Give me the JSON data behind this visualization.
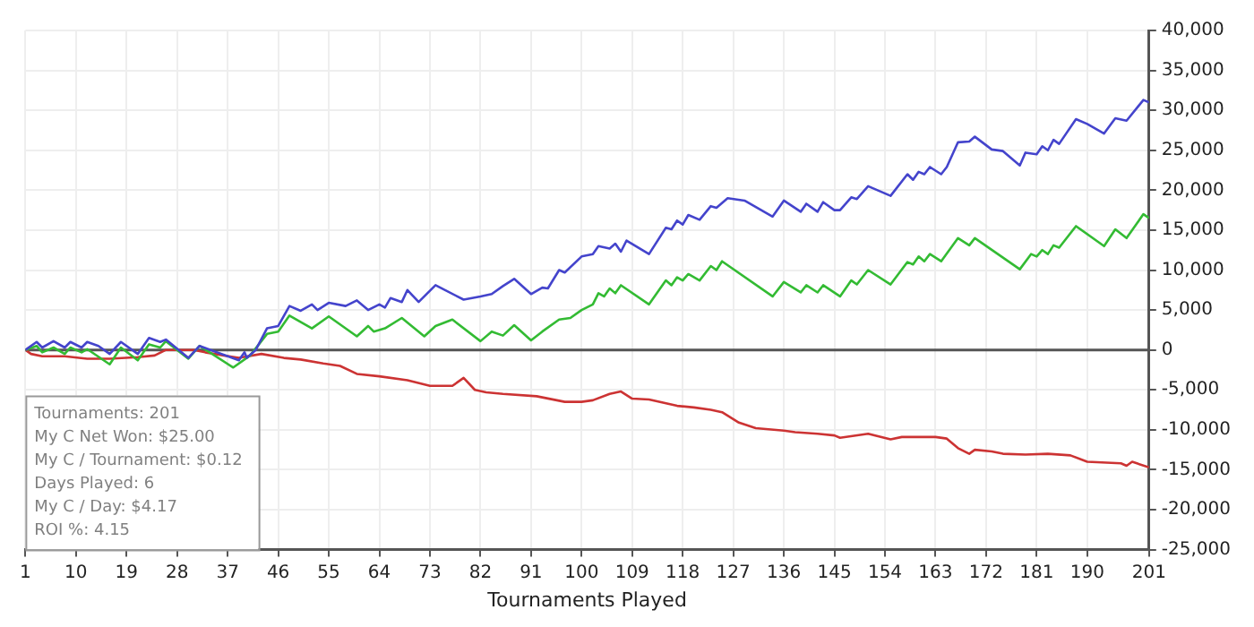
{
  "chart_data": {
    "type": "line",
    "xlabel": "Tournaments Played",
    "xlim": [
      1,
      201
    ],
    "xticks": [
      1,
      10,
      19,
      28,
      37,
      46,
      55,
      64,
      73,
      82,
      91,
      100,
      109,
      118,
      127,
      136,
      145,
      154,
      163,
      172,
      181,
      190,
      201
    ],
    "ylim": [
      -25000,
      40000
    ],
    "yticks": [
      {
        "value": -25000,
        "label": "-25,000"
      },
      {
        "value": -20000,
        "label": "-20,000"
      },
      {
        "value": -15000,
        "label": "-15,000"
      },
      {
        "value": -10000,
        "label": "-10,000"
      },
      {
        "value": -5000,
        "label": "-5,000"
      },
      0,
      {
        "value": 5000,
        "label": "5,000"
      },
      {
        "value": 10000,
        "label": "10,000"
      },
      {
        "value": 15000,
        "label": "15,000"
      },
      {
        "value": 20000,
        "label": "20,000"
      },
      {
        "value": 25000,
        "label": "25,000"
      },
      {
        "value": 30000,
        "label": "30,000"
      },
      {
        "value": 35000,
        "label": "35,000"
      },
      {
        "value": 40000,
        "label": "40,000"
      }
    ],
    "grid": true,
    "legend": false,
    "marker": "none",
    "line_style": "solid",
    "ref_lines": [
      {
        "axis": "y",
        "value": 0,
        "color": "#555555"
      }
    ],
    "annotations": [
      "Tournaments: 201",
      "My C Net Won: $25.00",
      "My C / Tournament: $0.12",
      "Days Played: 6",
      "My C / Day: $4.17",
      "ROI %: 4.15"
    ],
    "series": [
      {
        "color": "#4444cc",
        "x": [
          1,
          3,
          4,
          6,
          8,
          9,
          11,
          12,
          14,
          16,
          18,
          21,
          23,
          25,
          26,
          30,
          32,
          39,
          40,
          40.4,
          42,
          44,
          46,
          48,
          50,
          52,
          53,
          55,
          58,
          60,
          62,
          64,
          65,
          66,
          68,
          69,
          71,
          74,
          79,
          82,
          84,
          86,
          88,
          91,
          93,
          94,
          96,
          97,
          100,
          102,
          103,
          105,
          106,
          107,
          108,
          112,
          115,
          116,
          117,
          118,
          119,
          121,
          123,
          124,
          126,
          129,
          134,
          136,
          139,
          140,
          142,
          143,
          145,
          146,
          148,
          149,
          151,
          155,
          158,
          159,
          160,
          161,
          162,
          164,
          165,
          167,
          169,
          170,
          173,
          175,
          178,
          179,
          181,
          182,
          183,
          184,
          185,
          188,
          190,
          193,
          195,
          197,
          200,
          201
        ],
        "values": [
          0,
          1000,
          300,
          1100,
          300,
          1000,
          300,
          1000,
          500,
          -500,
          1000,
          -500,
          1500,
          1000,
          1300,
          -1000,
          500,
          -1300,
          -300,
          -1000,
          0,
          2700,
          3000,
          5500,
          4900,
          5700,
          5000,
          5900,
          5500,
          6200,
          5000,
          5700,
          5300,
          6500,
          6000,
          7500,
          6000,
          8100,
          6300,
          6700,
          7000,
          8000,
          8900,
          7000,
          7800,
          7700,
          10000,
          9700,
          11700,
          12000,
          13000,
          12700,
          13300,
          12300,
          13700,
          12000,
          15300,
          15100,
          16200,
          15700,
          16900,
          16300,
          18000,
          17800,
          19000,
          18700,
          16700,
          18700,
          17300,
          18300,
          17300,
          18500,
          17500,
          17500,
          19100,
          18900,
          20500,
          19300,
          22000,
          21300,
          22300,
          22000,
          22900,
          22000,
          22900,
          26000,
          26100,
          26700,
          25100,
          24900,
          23100,
          24700,
          24500,
          25500,
          25000,
          26300,
          25800,
          28900,
          28300,
          27100,
          29000,
          28700,
          31300,
          31000
        ]
      },
      {
        "color": "#33bb33",
        "x": [
          1,
          3,
          4,
          6,
          8,
          9,
          11,
          12,
          16,
          18,
          21,
          23,
          25,
          26,
          30,
          32,
          38,
          41,
          44,
          46,
          48,
          52,
          55,
          60,
          62,
          63,
          65,
          68,
          72,
          74,
          77,
          82,
          84,
          86,
          88,
          91,
          93,
          96,
          98,
          100,
          102,
          103,
          104,
          105,
          106,
          107,
          112,
          115,
          116,
          117,
          118,
          119,
          121,
          123,
          124,
          125,
          134,
          136,
          139,
          140,
          142,
          143,
          146,
          148,
          149,
          151,
          155,
          158,
          159,
          160,
          161,
          162,
          164,
          167,
          169,
          170,
          178,
          180,
          181,
          182,
          183,
          184,
          185,
          188,
          193,
          195,
          197,
          200,
          201
        ],
        "values": [
          0,
          500,
          -300,
          300,
          -500,
          300,
          -300,
          100,
          -1800,
          300,
          -1300,
          700,
          300,
          1100,
          -1100,
          500,
          -2200,
          -700,
          2000,
          2300,
          4300,
          2700,
          4200,
          1700,
          3000,
          2300,
          2700,
          4000,
          1700,
          3000,
          3800,
          1100,
          2300,
          1800,
          3100,
          1200,
          2300,
          3800,
          4000,
          5000,
          5700,
          7100,
          6700,
          7700,
          7100,
          8100,
          5700,
          8700,
          8100,
          9100,
          8700,
          9500,
          8700,
          10500,
          10000,
          11100,
          6700,
          8500,
          7200,
          8100,
          7200,
          8100,
          6700,
          8700,
          8200,
          10000,
          8200,
          11000,
          10700,
          11700,
          11100,
          12000,
          11100,
          14000,
          13100,
          14000,
          10100,
          12000,
          11700,
          12500,
          12000,
          13100,
          12800,
          15500,
          13000,
          15100,
          14000,
          17000,
          16500
        ]
      },
      {
        "color": "#cc3333",
        "x": [
          1,
          2,
          4,
          8,
          12,
          16,
          21,
          24,
          26,
          31,
          33,
          39,
          43,
          47,
          50,
          54,
          57,
          60,
          64,
          69,
          73,
          77,
          79,
          81,
          83,
          86,
          92,
          97,
          100,
          102,
          105,
          107,
          109,
          112,
          117,
          120,
          123,
          125,
          128,
          131,
          136,
          138,
          142,
          145,
          146,
          151,
          155,
          157,
          163,
          165,
          167,
          169,
          170,
          173,
          175,
          179,
          183,
          187,
          190,
          196,
          197,
          198,
          201
        ],
        "values": [
          0,
          -500,
          -800,
          -800,
          -1100,
          -1100,
          -900,
          -700,
          0,
          0,
          -300,
          -1000,
          -500,
          -1000,
          -1200,
          -1700,
          -2000,
          -3000,
          -3300,
          -3800,
          -4500,
          -4500,
          -3500,
          -5000,
          -5300,
          -5500,
          -5800,
          -6500,
          -6500,
          -6300,
          -5500,
          -5200,
          -6100,
          -6200,
          -7000,
          -7200,
          -7500,
          -7800,
          -9100,
          -9800,
          -10100,
          -10300,
          -10500,
          -10700,
          -11000,
          -10500,
          -11200,
          -10900,
          -10900,
          -11100,
          -12300,
          -13000,
          -12500,
          -12700,
          -13000,
          -13100,
          -13000,
          -13200,
          -14000,
          -14200,
          -14500,
          -14000,
          -14700
        ]
      }
    ]
  }
}
